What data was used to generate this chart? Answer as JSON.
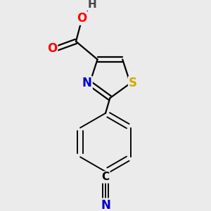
{
  "background_color": "#ebebeb",
  "atom_colors": {
    "C": "#000000",
    "N": "#0000cc",
    "O": "#ff0000",
    "S": "#ccaa00",
    "H": "#444444"
  },
  "bond_color": "#000000",
  "bond_width": 1.6,
  "font_size": 12
}
